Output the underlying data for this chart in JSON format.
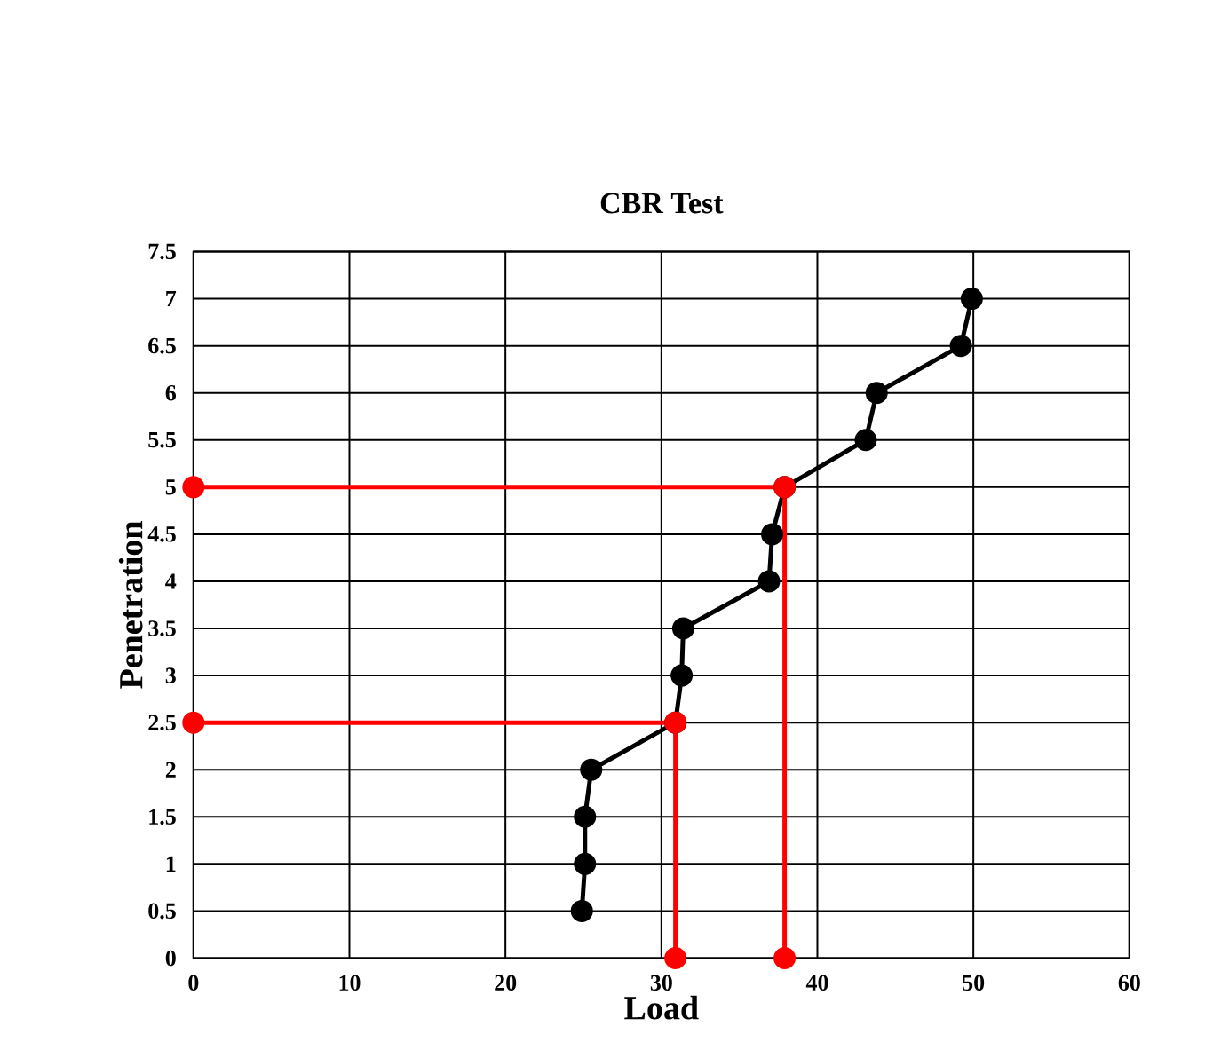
{
  "chart_data": {
    "type": "line",
    "title": "CBR Test",
    "xlabel": "Load",
    "ylabel": "Penetration",
    "xlim": [
      0,
      60
    ],
    "xticks": [
      0,
      10,
      20,
      30,
      40,
      50,
      60
    ],
    "ylim": [
      0,
      7.5
    ],
    "yticks": [
      0,
      0.5,
      1,
      1.5,
      2,
      2.5,
      3,
      3.5,
      4,
      4.5,
      5,
      5.5,
      6,
      6.5,
      7,
      7.5
    ],
    "grid": true,
    "marker": "circle",
    "line_style": "solid",
    "series": [
      {
        "color": "#000000",
        "x": [
          24.9,
          25.1,
          25.1,
          25.5,
          30.9,
          31.3,
          31.4,
          36.9,
          37.1,
          37.9,
          43.1,
          43.8,
          49.2,
          49.9
        ],
        "values": [
          0.5,
          1,
          1.5,
          2,
          2.5,
          3,
          3.5,
          4,
          4.5,
          5,
          5.5,
          6,
          6.5,
          7
        ]
      },
      {
        "color": "#ff0000",
        "x": [
          0,
          37.9,
          37.9
        ],
        "values": [
          5,
          5,
          0
        ]
      },
      {
        "color": "#ff0000",
        "x": [
          0,
          30.9,
          30.9
        ],
        "values": [
          2.5,
          2.5,
          0
        ]
      }
    ]
  }
}
